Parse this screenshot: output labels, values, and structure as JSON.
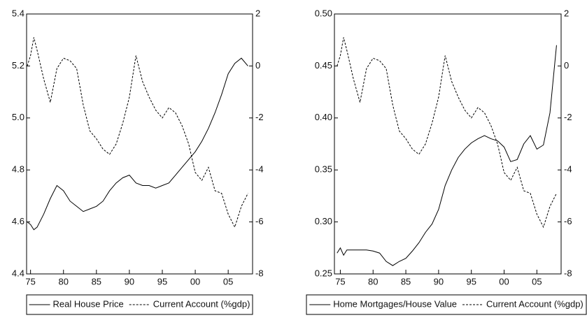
{
  "chart_data": [
    {
      "type": "line",
      "x": [
        1974.5,
        1975,
        1975.5,
        1976,
        1977,
        1978,
        1979,
        1980,
        1981,
        1982,
        1983,
        1984,
        1985,
        1986,
        1987,
        1988,
        1989,
        1990,
        1991,
        1992,
        1993,
        1994,
        1995,
        1996,
        1997,
        1998,
        1999,
        2000,
        2001,
        2002,
        2003,
        2004,
        2005,
        2006,
        2007,
        2008
      ],
      "xlim": [
        1974.4,
        2008.7
      ],
      "xticks": [
        {
          "value": 1975,
          "label": "75"
        },
        {
          "value": 1980,
          "label": "80"
        },
        {
          "value": 1985,
          "label": "85"
        },
        {
          "value": 1990,
          "label": "90"
        },
        {
          "value": 1995,
          "label": "95"
        },
        {
          "value": 2000,
          "label": "00"
        },
        {
          "value": 2005,
          "label": "05"
        }
      ],
      "ylim": [
        4.4,
        5.4
      ],
      "yticks": [
        4.4,
        4.6,
        4.8,
        {
          "value": 5.0,
          "label": "5.0"
        },
        5.2,
        5.4
      ],
      "y2lim": [
        -8,
        2
      ],
      "y2ticks": [
        -8,
        -6,
        -4,
        -2,
        0,
        2
      ],
      "legend": "bottom",
      "series": [
        {
          "name": "Real House Price",
          "color": "#000000",
          "line_style": "solid",
          "values": [
            4.6,
            4.59,
            4.57,
            4.58,
            4.63,
            4.69,
            4.74,
            4.72,
            4.68,
            4.66,
            4.64,
            4.65,
            4.66,
            4.68,
            4.72,
            4.75,
            4.77,
            4.78,
            4.75,
            4.74,
            4.74,
            4.73,
            4.74,
            4.75,
            4.78,
            4.81,
            4.84,
            4.87,
            4.91,
            4.96,
            5.02,
            5.09,
            5.17,
            5.21,
            5.23,
            5.2
          ]
        },
        {
          "name": "Current Account (%gdp)",
          "color": "#000000",
          "line_style": "dashed",
          "axis": "y2",
          "values": [
            0.0,
            0.4,
            1.1,
            0.6,
            -0.5,
            -1.4,
            -0.1,
            0.3,
            0.2,
            -0.1,
            -1.5,
            -2.5,
            -2.8,
            -3.2,
            -3.4,
            -3.0,
            -2.2,
            -1.2,
            0.4,
            -0.6,
            -1.2,
            -1.7,
            -2.0,
            -1.6,
            -1.8,
            -2.3,
            -3.0,
            -4.1,
            -4.4,
            -3.9,
            -4.8,
            -4.9,
            -5.7,
            -6.2,
            -5.4,
            -4.9
          ]
        }
      ]
    },
    {
      "type": "line",
      "x": [
        1974.5,
        1975,
        1975.5,
        1976,
        1977,
        1978,
        1979,
        1980,
        1981,
        1982,
        1983,
        1984,
        1985,
        1986,
        1987,
        1988,
        1989,
        1990,
        1991,
        1992,
        1993,
        1994,
        1995,
        1996,
        1997,
        1998,
        1999,
        2000,
        2001,
        2002,
        2003,
        2004,
        2005,
        2006,
        2007,
        2008
      ],
      "xlim": [
        1974.1,
        2008.7
      ],
      "xticks": [
        {
          "value": 1975,
          "label": "75"
        },
        {
          "value": 1980,
          "label": "80"
        },
        {
          "value": 1985,
          "label": "85"
        },
        {
          "value": 1990,
          "label": "90"
        },
        {
          "value": 1995,
          "label": "95"
        },
        {
          "value": 2000,
          "label": "00"
        },
        {
          "value": 2005,
          "label": "05"
        }
      ],
      "ylim": [
        0.25,
        0.5
      ],
      "yticks": [
        0.25,
        {
          "value": 0.3,
          "label": "0.30"
        },
        0.35,
        {
          "value": 0.4,
          "label": "0.40"
        },
        0.45,
        {
          "value": 0.5,
          "label": "0.50"
        }
      ],
      "y2lim": [
        -8,
        2
      ],
      "y2ticks": [
        -8,
        -6,
        -4,
        -2,
        0,
        2
      ],
      "legend": "bottom",
      "series": [
        {
          "name": "Home Mortgages/House Value",
          "color": "#000000",
          "line_style": "solid",
          "values": [
            0.27,
            0.275,
            0.268,
            0.273,
            0.273,
            0.273,
            0.273,
            0.272,
            0.27,
            0.262,
            0.258,
            0.262,
            0.265,
            0.272,
            0.28,
            0.29,
            0.298,
            0.312,
            0.335,
            0.35,
            0.362,
            0.37,
            0.376,
            0.38,
            0.383,
            0.38,
            0.378,
            0.372,
            0.358,
            0.36,
            0.375,
            0.383,
            0.37,
            0.374,
            0.405,
            0.47
          ]
        },
        {
          "name": "Current Account (%gdp)",
          "color": "#000000",
          "line_style": "dashed",
          "axis": "y2",
          "values": [
            0.0,
            0.4,
            1.1,
            0.6,
            -0.5,
            -1.4,
            -0.1,
            0.3,
            0.2,
            -0.1,
            -1.5,
            -2.5,
            -2.8,
            -3.2,
            -3.4,
            -3.0,
            -2.2,
            -1.2,
            0.4,
            -0.6,
            -1.2,
            -1.7,
            -2.0,
            -1.6,
            -1.8,
            -2.3,
            -3.0,
            -4.1,
            -4.4,
            -3.9,
            -4.8,
            -4.9,
            -5.7,
            -6.2,
            -5.4,
            -4.9
          ]
        }
      ]
    }
  ]
}
